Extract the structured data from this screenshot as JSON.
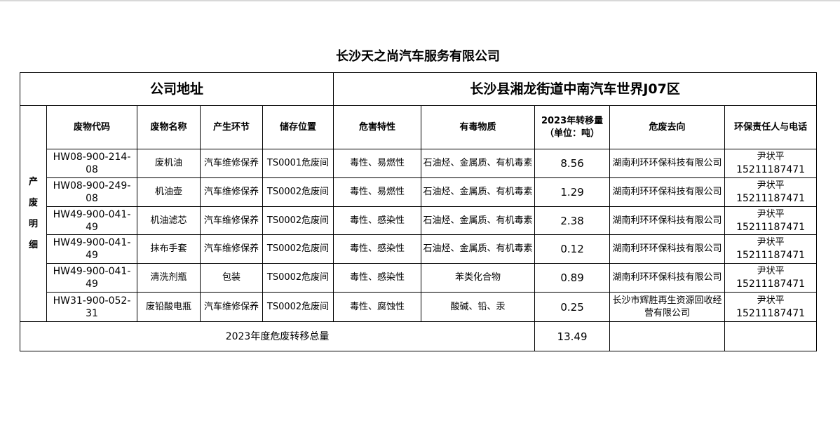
{
  "title": "长沙天之尚汽车服务有限公司",
  "address_label": "公司地址",
  "address_value": "长沙县湘龙街道中南汽车世界J07区",
  "section_label": [
    "产",
    "废",
    "明",
    "细"
  ],
  "headers": [
    "废物代码",
    "废物名称",
    "产生环节",
    "储存位置",
    "危害特性",
    "有毒物质",
    "2023年转移量（单位：吨）",
    "危废去向",
    "环保责任人与电话"
  ],
  "rows": [
    {
      "code": "HW08-900-214-08",
      "name": "废机油",
      "stage": "汽车维修保养",
      "storage": "TS0001危废间",
      "hazard": "毒性、易燃性",
      "toxic": "石油烃、金属质、有机毒素",
      "amount": "8.56",
      "destination": "湖南利环环保科技有限公司",
      "contact_name": "尹状平",
      "contact_phone": "15211187471"
    },
    {
      "code": "HW08-900-249-08",
      "name": "机油壶",
      "stage": "汽车维修保养",
      "storage": "TS0002危废间",
      "hazard": "毒性、易燃性",
      "toxic": "石油烃、金属质、有机毒素",
      "amount": "1.29",
      "destination": "湖南利环环保科技有限公司",
      "contact_name": "尹状平",
      "contact_phone": "15211187471"
    },
    {
      "code": "HW49-900-041-49",
      "name": "机油滤芯",
      "stage": "汽车维修保养",
      "storage": "TS0002危废间",
      "hazard": "毒性、感染性",
      "toxic": "石油烃、金属质、有机毒素",
      "amount": "2.38",
      "destination": "湖南利环环保科技有限公司",
      "contact_name": "尹状平",
      "contact_phone": "15211187471"
    },
    {
      "code": "HW49-900-041-49",
      "name": "抹布手套",
      "stage": "汽车维修保养",
      "storage": "TS0002危废间",
      "hazard": "毒性、感染性",
      "toxic": "石油烃、金属质、有机毒素",
      "amount": "0.12",
      "destination": "湖南利环环保科技有限公司",
      "contact_name": "尹状平",
      "contact_phone": "15211187471"
    },
    {
      "code": "HW49-900-041-49",
      "name": "清洗剂瓶",
      "stage": "包装",
      "storage": "TS0002危废间",
      "hazard": "毒性、感染性",
      "toxic": "苯类化合物",
      "amount": "0.89",
      "destination": "湖南利环环保科技有限公司",
      "contact_name": "尹状平",
      "contact_phone": "15211187471"
    },
    {
      "code": "HW31-900-052-31",
      "name": "废铅酸电瓶",
      "stage": "汽车维修保养",
      "storage": "TS0002危废间",
      "hazard": "毒性、腐蚀性",
      "toxic": "酸碱、铅、汞",
      "amount": "0.25",
      "destination": "长沙市辉胜再生资源回收经营有限公司",
      "contact_name": "尹状平",
      "contact_phone": "15211187471"
    }
  ],
  "total_label": "2023年度危废转移总量",
  "total_value": "13.49"
}
